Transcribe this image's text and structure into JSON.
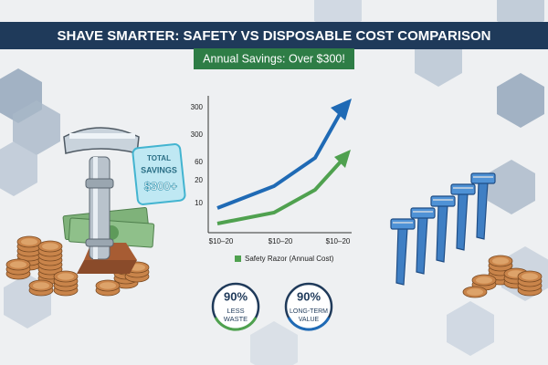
{
  "header": {
    "title": "SHAVE SMARTER: SAFETY VS DISPOSABLE COST COMPARISON"
  },
  "banner": {
    "text": "Annual Savings: Over $300!"
  },
  "calculator": {
    "lines": [
      "TOTAL",
      "SAVINGS",
      "$300+"
    ]
  },
  "chart": {
    "y_tick_labels": [
      "300",
      "300",
      "60",
      "20",
      "10"
    ],
    "x_tick_labels": [
      "$10–20",
      "$10–20",
      "$10–20"
    ],
    "legend": "Safety Razor (Annual Cost)"
  },
  "badges": [
    {
      "value": "90%",
      "lines": [
        "LESS",
        "WASTE"
      ]
    },
    {
      "value": "90%",
      "lines": [
        "LONG-TERM",
        "VALUE"
      ]
    }
  ]
}
